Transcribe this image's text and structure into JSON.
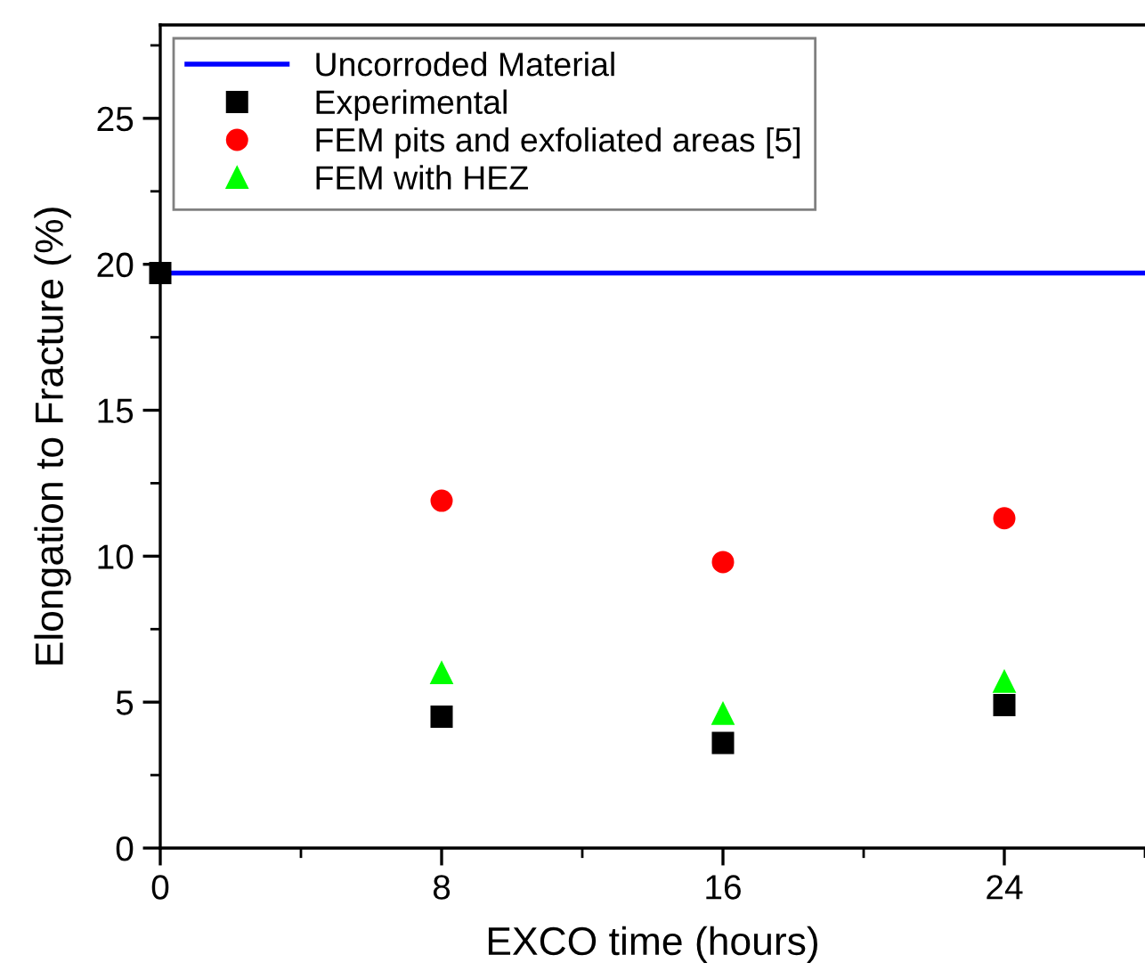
{
  "chart_data": {
    "type": "scatter",
    "xlabel": "EXCO time (hours)",
    "ylabel": "Elongation to Fracture (%)",
    "xlim": [
      0,
      28
    ],
    "ylim": [
      0,
      28.2
    ],
    "xticks": [
      0,
      {
        "value": 4,
        "label": null
      },
      8,
      {
        "value": 12,
        "label": null
      },
      16,
      {
        "value": 20,
        "label": null
      },
      24,
      {
        "value": 28,
        "label": null
      }
    ],
    "yticks": [
      0,
      {
        "value": 2.5,
        "label": null
      },
      5,
      {
        "value": 7.5,
        "label": null
      },
      10,
      {
        "value": 12.5,
        "label": null
      },
      15,
      {
        "value": 17.5,
        "label": null
      },
      20,
      {
        "value": 22.5,
        "label": null
      },
      25,
      {
        "value": 27.5,
        "label": null
      }
    ],
    "grid": false,
    "legend": "top left",
    "series": [
      {
        "name": "Uncorroded Material",
        "type": "line",
        "color": "#0000ff",
        "marker": "none",
        "line_style": "solid",
        "x": [
          0,
          28
        ],
        "values": [
          19.7,
          19.7
        ]
      },
      {
        "name": "Experimental",
        "color": "#000000",
        "marker": "square",
        "x": [
          0,
          8,
          16,
          24
        ],
        "values": [
          19.7,
          4.5,
          3.6,
          4.9
        ]
      },
      {
        "name": "FEM pits and exfoliated areas [5]",
        "color": "#ff0000",
        "marker": "circle",
        "x": [
          8,
          16,
          24
        ],
        "values": [
          11.9,
          9.8,
          11.3
        ]
      },
      {
        "name": "FEM with HEZ",
        "color": "#00ff00",
        "marker": "triangle",
        "x": [
          8,
          16,
          24
        ],
        "values": [
          6.0,
          4.6,
          5.7
        ]
      }
    ]
  }
}
